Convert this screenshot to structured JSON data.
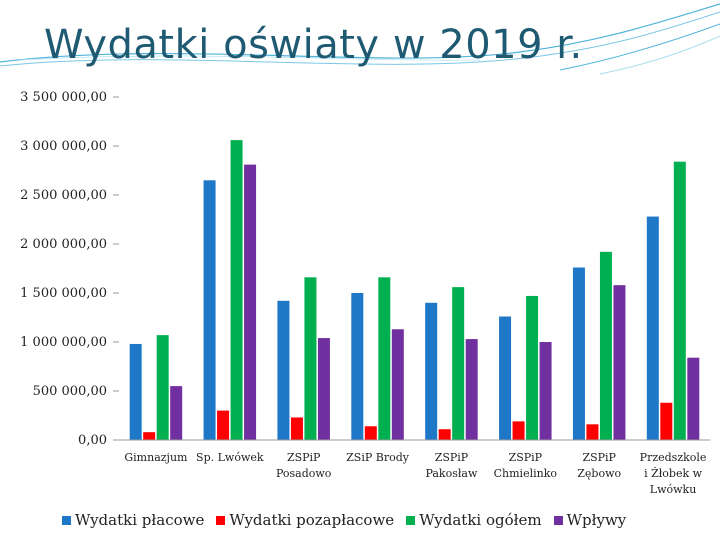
{
  "slide": {
    "title": "Wydatki oświaty w 2019 r."
  },
  "colors": {
    "background": "#ffffff",
    "title": "#1f5a73",
    "accent_lines": "#4fb3d9",
    "axis": "#9a9a9a"
  },
  "chart_data": {
    "type": "bar",
    "title": "Wydatki oświaty w 2019 r.",
    "xlabel": "",
    "ylabel": "",
    "ylim": [
      0,
      3500000
    ],
    "yticks": [
      0,
      500000,
      1000000,
      1500000,
      2000000,
      2500000,
      3000000,
      3500000
    ],
    "ytick_labels": [
      "0,00",
      "500 000,00",
      "1 000 000,00",
      "1 500 000,00",
      "2 000 000,00",
      "2 500 000,00",
      "3 000 000,00",
      "3 500 000,00"
    ],
    "grid": false,
    "legend_position": "bottom",
    "categories": [
      "Gimnazjum",
      "Sp. Lwówek",
      "ZSPiP Posadowo",
      "ZSiP Brody",
      "ZSPiP Pakosław",
      "ZSPiP Chmielinko",
      "ZSPiP Zębowo",
      "Przedszkole i Żłobek w Lwówku"
    ],
    "category_label_lines": [
      [
        "Gimnazjum"
      ],
      [
        "Sp. Lwówek"
      ],
      [
        "ZSPiP",
        "Posadowo"
      ],
      [
        "ZSiP Brody"
      ],
      [
        "ZSPiP",
        "Pakosław"
      ],
      [
        "ZSPiP",
        "Chmielinko"
      ],
      [
        "ZSPiP",
        "Zębowo"
      ],
      [
        "Przedszkole",
        "i Żłobek w",
        "Lwówku"
      ]
    ],
    "series": [
      {
        "name": "Wydatki płacowe",
        "color": "#1f77c8",
        "values": [
          980000,
          2650000,
          1420000,
          1500000,
          1400000,
          1260000,
          1760000,
          2280000
        ]
      },
      {
        "name": "Wydatki pozapłacowe",
        "color": "#ff0000",
        "values": [
          80000,
          300000,
          230000,
          140000,
          110000,
          190000,
          160000,
          380000
        ]
      },
      {
        "name": "Wydatki ogółem",
        "color": "#00b050",
        "values": [
          1070000,
          3060000,
          1660000,
          1660000,
          1560000,
          1470000,
          1920000,
          2840000
        ]
      },
      {
        "name": "Wpływy",
        "color": "#7030a0",
        "values": [
          550000,
          2810000,
          1040000,
          1130000,
          1030000,
          1000000,
          1580000,
          840000
        ]
      }
    ]
  }
}
